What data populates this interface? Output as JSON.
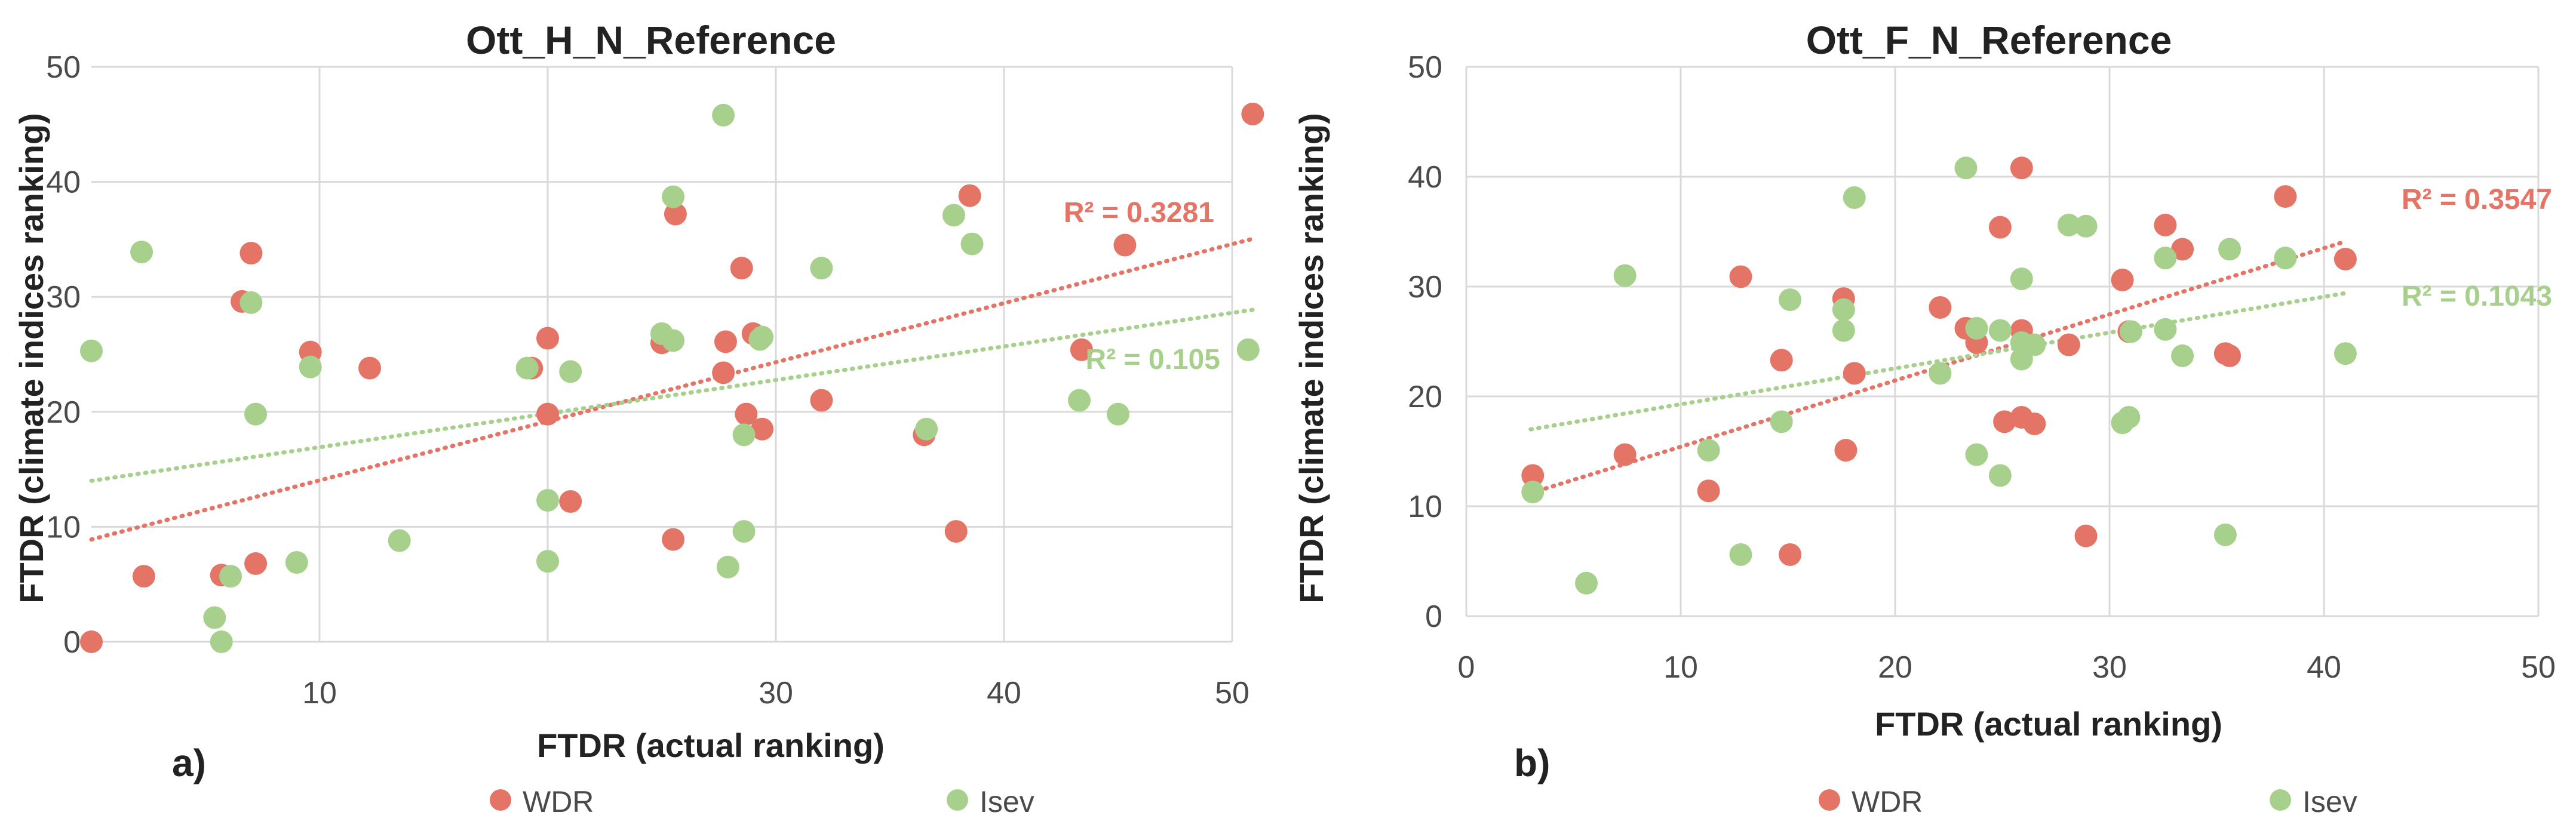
{
  "colors": {
    "wdr": "#e47466",
    "isev": "#a8d08d",
    "grid": "#d9d9d9",
    "text": "#222222",
    "tick": "#4a4a4a"
  },
  "legend": {
    "wdr": "WDR",
    "isev": "Isev"
  },
  "chart_data": [
    {
      "type": "scatter",
      "panel_label": "a)",
      "title": "Ott_H_N_Reference",
      "xlabel": "FTDR (actual ranking)",
      "ylabel": "FTDR (climate indices ranking)",
      "xlim": [
        0,
        50
      ],
      "ylim": [
        0,
        50
      ],
      "x_ticks": [
        10,
        20,
        30,
        40,
        50
      ],
      "x_tick_labels": [
        "10",
        "",
        "30",
        "40",
        "50"
      ],
      "y_ticks": [
        0,
        10,
        20,
        30,
        40,
        50
      ],
      "y_tick_labels": [
        "0",
        "10",
        "20",
        "30",
        "40",
        "50"
      ],
      "grid": true,
      "legend_position": "bottom",
      "series": [
        {
          "name": "WDR",
          "color_key": "wdr",
          "points": [
            [
              0,
              0
            ],
            [
              2.3,
              5.7
            ],
            [
              5.7,
              5.8
            ],
            [
              7.2,
              6.8
            ],
            [
              6.6,
              29.6
            ],
            [
              7,
              33.8
            ],
            [
              9.6,
              25.2
            ],
            [
              12.2,
              23.8
            ],
            [
              19.3,
              23.8
            ],
            [
              20,
              19.8
            ],
            [
              20,
              26.4
            ],
            [
              21,
              12.2
            ],
            [
              25,
              26
            ],
            [
              25.6,
              37.2
            ],
            [
              25.5,
              8.9
            ],
            [
              27.8,
              26.1
            ],
            [
              27.7,
              23.4
            ],
            [
              28.5,
              32.5
            ],
            [
              28.7,
              19.8
            ],
            [
              29,
              26.8
            ],
            [
              29.4,
              18.5
            ],
            [
              32,
              21
            ],
            [
              36.5,
              18
            ],
            [
              37.9,
              9.6
            ],
            [
              38.5,
              38.8
            ],
            [
              43.4,
              25.4
            ],
            [
              45.3,
              34.5
            ],
            [
              50.9,
              45.9
            ]
          ],
          "trendline": {
            "type": "linear",
            "start": [
              0,
              8.9
            ],
            "end": [
              51,
              35.1
            ],
            "r2_label": "R² = 0.3281"
          }
        },
        {
          "name": "Isev",
          "color_key": "isev",
          "points": [
            [
              0,
              25.3
            ],
            [
              2.2,
              33.9
            ],
            [
              5.4,
              2.1
            ],
            [
              5.7,
              0
            ],
            [
              6.1,
              5.7
            ],
            [
              7,
              29.5
            ],
            [
              7.2,
              19.8
            ],
            [
              9,
              6.9
            ],
            [
              9.6,
              23.9
            ],
            [
              13.5,
              8.8
            ],
            [
              19.1,
              23.8
            ],
            [
              20,
              7
            ],
            [
              20,
              12.3
            ],
            [
              21,
              23.5
            ],
            [
              25,
              26.8
            ],
            [
              25.5,
              26.2
            ],
            [
              25.5,
              38.7
            ],
            [
              27.7,
              45.8
            ],
            [
              27.9,
              6.5
            ],
            [
              28.6,
              18
            ],
            [
              28.6,
              9.6
            ],
            [
              29.3,
              26.3
            ],
            [
              29.4,
              26.5
            ],
            [
              32,
              32.5
            ],
            [
              36.6,
              18.5
            ],
            [
              37.8,
              37.1
            ],
            [
              38.6,
              34.6
            ],
            [
              43.3,
              21
            ],
            [
              45,
              19.8
            ],
            [
              50.7,
              25.4
            ]
          ],
          "trendline": {
            "type": "linear",
            "start": [
              0,
              14
            ],
            "end": [
              51,
              28.9
            ],
            "r2_label": "R² = 0.105"
          }
        }
      ]
    },
    {
      "type": "scatter",
      "panel_label": "b)",
      "title": "Ott_F_N_Reference",
      "xlabel": "FTDR (actual ranking)",
      "ylabel": "FTDR (climate indices ranking)",
      "xlim": [
        0,
        50
      ],
      "ylim": [
        0,
        50
      ],
      "x_ticks": [
        0,
        10,
        20,
        30,
        40,
        50
      ],
      "x_tick_labels": [
        "0",
        "10",
        "20",
        "30",
        "40",
        "50"
      ],
      "y_ticks": [
        0,
        10,
        20,
        30,
        40,
        50
      ],
      "y_tick_labels": [
        "0",
        "10",
        "20",
        "30",
        "40",
        "50"
      ],
      "grid": true,
      "legend_position": "bottom",
      "series": [
        {
          "name": "WDR",
          "color_key": "wdr",
          "points": [
            [
              3.1,
              12.8
            ],
            [
              7.4,
              14.7
            ],
            [
              11.3,
              11.4
            ],
            [
              12.8,
              30.9
            ],
            [
              14.7,
              23.3
            ],
            [
              15.1,
              5.6
            ],
            [
              17.6,
              28.9
            ],
            [
              17.7,
              15.1
            ],
            [
              18.1,
              22.1
            ],
            [
              22.1,
              28.1
            ],
            [
              23.3,
              26.2
            ],
            [
              23.8,
              24.9
            ],
            [
              24.9,
              35.4
            ],
            [
              25.1,
              17.7
            ],
            [
              25.9,
              40.8
            ],
            [
              25.9,
              18.1
            ],
            [
              25.9,
              26
            ],
            [
              26.5,
              17.5
            ],
            [
              28.1,
              24.7
            ],
            [
              28.9,
              7.3
            ],
            [
              30.6,
              30.6
            ],
            [
              30.9,
              25.9
            ],
            [
              32.6,
              35.6
            ],
            [
              33.4,
              33.4
            ],
            [
              35.4,
              23.9
            ],
            [
              35.6,
              23.7
            ],
            [
              38.2,
              38.2
            ],
            [
              41,
              32.5
            ]
          ],
          "trendline": {
            "type": "linear",
            "start": [
              3,
              11.2
            ],
            "end": [
              41,
              34.1
            ],
            "r2_label": "R² = 0.3547"
          }
        },
        {
          "name": "Isev",
          "color_key": "isev",
          "points": [
            [
              3.1,
              11.3
            ],
            [
              5.6,
              3
            ],
            [
              7.4,
              31
            ],
            [
              11.3,
              15.1
            ],
            [
              12.8,
              5.6
            ],
            [
              14.7,
              17.7
            ],
            [
              15.1,
              28.8
            ],
            [
              17.6,
              27.9
            ],
            [
              17.6,
              26
            ],
            [
              18.1,
              38.1
            ],
            [
              22.1,
              22.1
            ],
            [
              23.3,
              40.8
            ],
            [
              23.8,
              26.2
            ],
            [
              23.8,
              14.7
            ],
            [
              24.9,
              12.8
            ],
            [
              24.9,
              26
            ],
            [
              25.9,
              30.7
            ],
            [
              25.9,
              24.9
            ],
            [
              25.9,
              23.4
            ],
            [
              26.5,
              24.7
            ],
            [
              28.1,
              35.6
            ],
            [
              28.9,
              35.5
            ],
            [
              30.6,
              17.6
            ],
            [
              30.9,
              18.1
            ],
            [
              31,
              25.9
            ],
            [
              32.6,
              26.1
            ],
            [
              32.6,
              32.6
            ],
            [
              33.4,
              23.7
            ],
            [
              35.4,
              7.4
            ],
            [
              35.6,
              33.4
            ],
            [
              38.2,
              32.6
            ],
            [
              41,
              23.9
            ]
          ],
          "trendline": {
            "type": "linear",
            "start": [
              3,
              17
            ],
            "end": [
              41,
              29.4
            ],
            "r2_label": "R² = 0.1043"
          }
        }
      ]
    }
  ]
}
